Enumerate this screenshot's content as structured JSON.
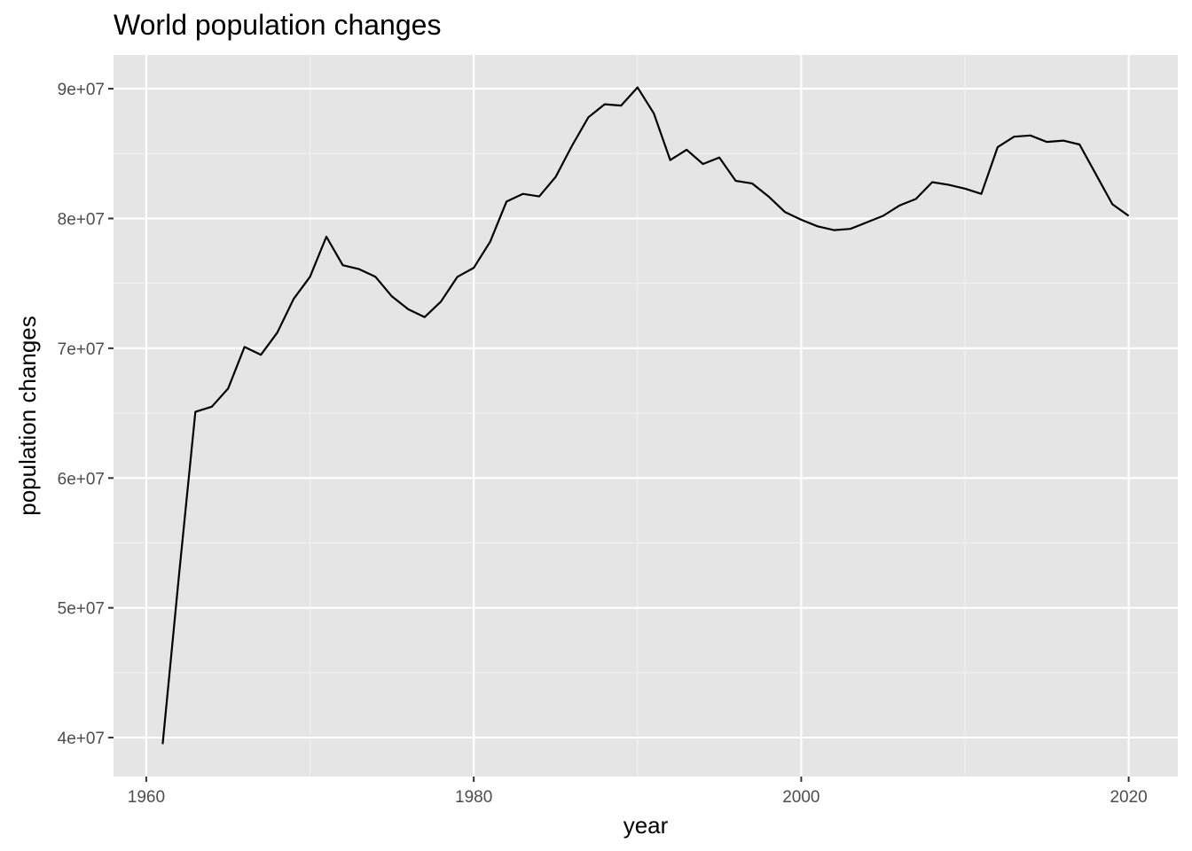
{
  "chart_data": {
    "type": "line",
    "title": "World population changes",
    "xlabel": "year",
    "ylabel": "population changes",
    "xlim": [
      1958,
      2023
    ],
    "ylim": [
      37000000,
      92600000
    ],
    "x_ticks": [
      1960,
      1980,
      2000,
      2020
    ],
    "x_tick_labels": [
      "1960",
      "1980",
      "2000",
      "2020"
    ],
    "y_ticks": [
      40000000,
      50000000,
      60000000,
      70000000,
      80000000,
      90000000
    ],
    "y_tick_labels": [
      "4e+07",
      "5e+07",
      "6e+07",
      "7e+07",
      "8e+07",
      "9e+07"
    ],
    "grid": true,
    "background": "#e5e5e5",
    "line_color": "#000000",
    "series": [
      {
        "x": [
          1961,
          1962,
          1963,
          1964,
          1965,
          1966,
          1967,
          1968,
          1969,
          1970,
          1971,
          1972,
          1973,
          1974,
          1975,
          1976,
          1977,
          1978,
          1979,
          1980,
          1981,
          1982,
          1983,
          1984,
          1985,
          1986,
          1987,
          1988,
          1989,
          1990,
          1991,
          1992,
          1993,
          1994,
          1995,
          1996,
          1997,
          1998,
          1999,
          2000,
          2001,
          2002,
          2003,
          2004,
          2005,
          2006,
          2007,
          2008,
          2009,
          2010,
          2011,
          2012,
          2013,
          2014,
          2015,
          2016,
          2017,
          2018,
          2019,
          2020
        ],
        "values": [
          39500000,
          52500000,
          65100000,
          65500000,
          66900000,
          70100000,
          69500000,
          71200000,
          73800000,
          75500000,
          78600000,
          76400000,
          76100000,
          75500000,
          74000000,
          73000000,
          72400000,
          73600000,
          75500000,
          76200000,
          78200000,
          81300000,
          81900000,
          81700000,
          83200000,
          85600000,
          87800000,
          88800000,
          88700000,
          90100000,
          88100000,
          84500000,
          85300000,
          84200000,
          84700000,
          82900000,
          82700000,
          81700000,
          80500000,
          79900000,
          79400000,
          79100000,
          79200000,
          79700000,
          80200000,
          81000000,
          81500000,
          82800000,
          82600000,
          82300000,
          81900000,
          85500000,
          86300000,
          86400000,
          85900000,
          86000000,
          85700000,
          83400000,
          81100000,
          80200000
        ]
      }
    ]
  }
}
